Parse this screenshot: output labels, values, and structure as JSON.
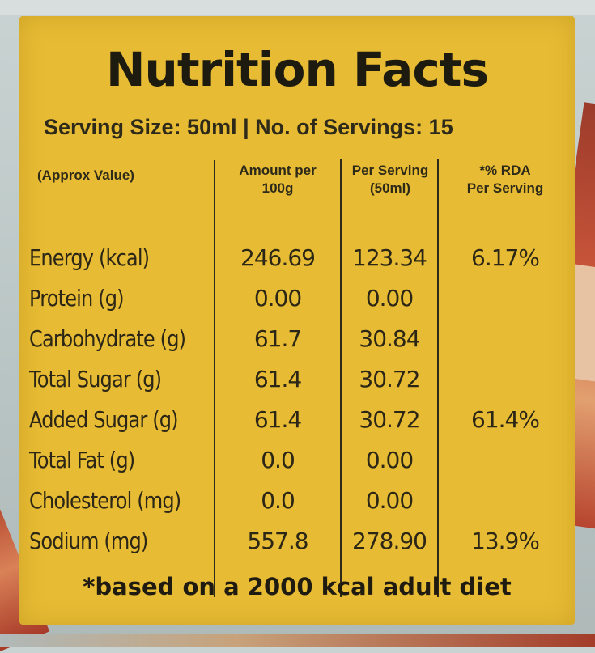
{
  "label": {
    "title": "Nutrition Facts",
    "serving": "Serving Size: 50ml | No. of Servings: 15",
    "headers": {
      "approx": "(Approx Value)",
      "amount_line1": "Amount per",
      "amount_line2": "100g",
      "per_line1": "Per Serving",
      "per_line2": "(50ml)",
      "rda_line1": "*% RDA",
      "rda_line2": "Per Serving"
    },
    "rows": [
      {
        "name": "Energy (kcal)",
        "amount": "246.69",
        "per_serving": "123.34",
        "rda": "6.17%"
      },
      {
        "name": "Protein (g)",
        "amount": "0.00",
        "per_serving": "0.00",
        "rda": ""
      },
      {
        "name": "Carbohydrate (g)",
        "amount": "61.7",
        "per_serving": "30.84",
        "rda": ""
      },
      {
        "name": "Total Sugar (g)",
        "amount": "61.4",
        "per_serving": "30.72",
        "rda": ""
      },
      {
        "name": "Added Sugar (g)",
        "amount": "61.4",
        "per_serving": "30.72",
        "rda": "61.4%"
      },
      {
        "name": "Total Fat (g)",
        "amount": "0.0",
        "per_serving": "0.00",
        "rda": ""
      },
      {
        "name": "Cholesterol (mg)",
        "amount": "0.0",
        "per_serving": "0.00",
        "rda": ""
      },
      {
        "name": "Sodium (mg)",
        "amount": "557.8",
        "per_serving": "278.90",
        "rda": "13.9%"
      }
    ],
    "footnote": "*based on a 2000 kcal adult diet"
  },
  "colors": {
    "label_yellow": "#e7bb33",
    "ink": "#2b2616",
    "background": "#c9d3d2",
    "accent_red": "#b1432d"
  }
}
